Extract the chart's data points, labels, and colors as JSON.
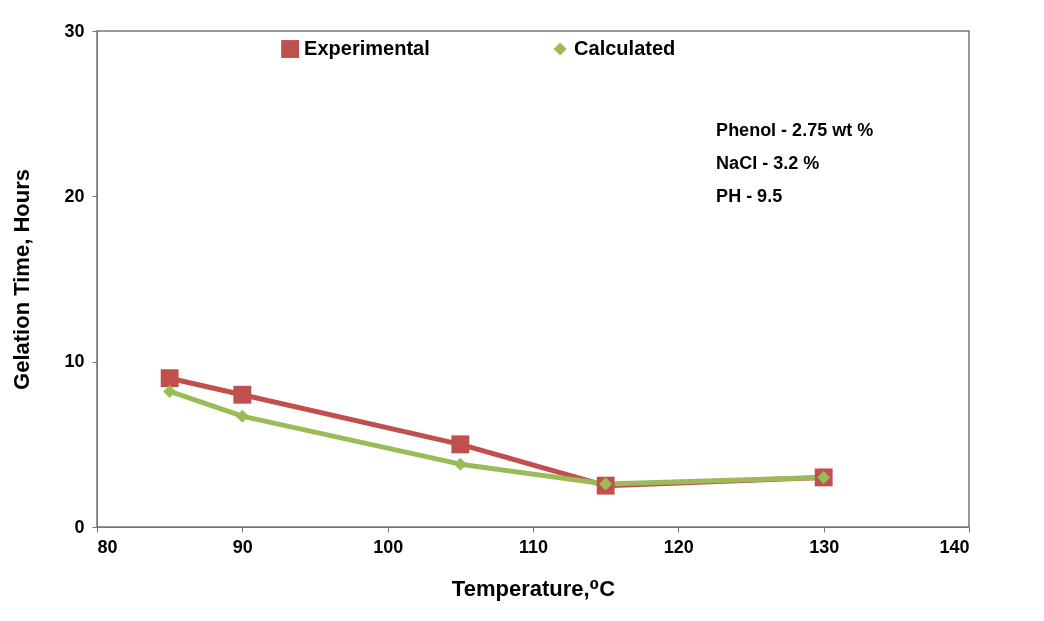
{
  "chart_data": {
    "type": "line",
    "xlabel": "Temperature,⁰C",
    "ylabel": "Gelation Time, Hours",
    "x": [
      85,
      90,
      105,
      115,
      130
    ],
    "series": [
      {
        "name": "Experimental",
        "color": "#c0504d",
        "marker": "square",
        "values": [
          9.0,
          8.0,
          5.0,
          2.5,
          3.0
        ]
      },
      {
        "name": "Calculated",
        "color": "#9bbb59",
        "marker": "diamond",
        "values": [
          8.2,
          6.7,
          3.8,
          2.6,
          3.0
        ]
      }
    ],
    "xlim": [
      80,
      140
    ],
    "xticks": [
      80,
      90,
      100,
      110,
      120,
      130,
      140
    ],
    "ylim": [
      0,
      30
    ],
    "yticks": [
      0,
      10,
      20,
      30
    ],
    "grid": false,
    "legend": "top",
    "annotations": [
      "Phenol - 2.75 wt %",
      "NaCl - 3.2 %",
      "PH - 9.5"
    ]
  }
}
